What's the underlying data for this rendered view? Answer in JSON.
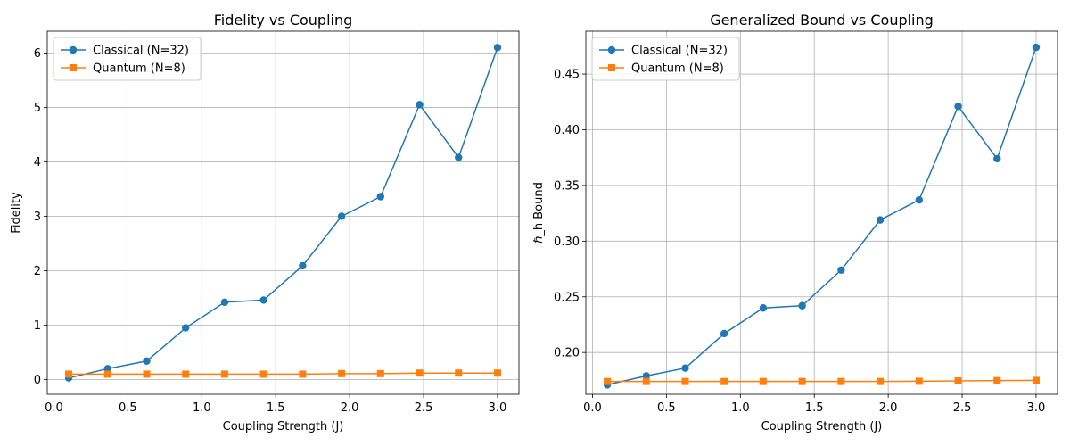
{
  "chart_data": [
    {
      "type": "line",
      "title": "Fidelity vs Coupling",
      "xlabel": "Coupling Strength (J)",
      "ylabel": "Fidelity",
      "x": [
        0.1,
        0.3636,
        0.6273,
        0.8909,
        1.1545,
        1.4182,
        1.6818,
        1.9455,
        2.2091,
        2.4727,
        2.7364,
        3.0
      ],
      "xlim": [
        -0.045,
        3.145
      ],
      "ylim": [
        -0.27,
        6.4
      ],
      "xticks": [
        0.0,
        0.5,
        1.0,
        1.5,
        2.0,
        2.5,
        3.0
      ],
      "xtick_labels": [
        "0.0",
        "0.5",
        "1.0",
        "1.5",
        "2.0",
        "2.5",
        "3.0"
      ],
      "yticks": [
        0,
        1,
        2,
        3,
        4,
        5,
        6
      ],
      "ytick_labels": [
        "0",
        "1",
        "2",
        "3",
        "4",
        "5",
        "6"
      ],
      "grid": true,
      "legend_position": "top-left",
      "series": [
        {
          "name": "Classical (N=32)",
          "color": "#1f77b4",
          "marker": "circle",
          "values": [
            0.03,
            0.2,
            0.34,
            0.95,
            1.42,
            1.46,
            2.09,
            3.0,
            3.36,
            5.05,
            4.08,
            6.1
          ]
        },
        {
          "name": "Quantum (N=8)",
          "color": "#ff7f0e",
          "marker": "square",
          "values": [
            0.1,
            0.1,
            0.1,
            0.1,
            0.1,
            0.1,
            0.1,
            0.11,
            0.11,
            0.12,
            0.12,
            0.12
          ]
        }
      ]
    },
    {
      "type": "line",
      "title": "Generalized Bound vs Coupling",
      "xlabel": "Coupling Strength (J)",
      "ylabel": "ℏ_h Bound",
      "x": [
        0.1,
        0.3636,
        0.6273,
        0.8909,
        1.1545,
        1.4182,
        1.6818,
        1.9455,
        2.2091,
        2.4727,
        2.7364,
        3.0
      ],
      "xlim": [
        -0.045,
        3.145
      ],
      "ylim": [
        0.1625,
        0.4885
      ],
      "xticks": [
        0.0,
        0.5,
        1.0,
        1.5,
        2.0,
        2.5,
        3.0
      ],
      "xtick_labels": [
        "0.0",
        "0.5",
        "1.0",
        "1.5",
        "2.0",
        "2.5",
        "3.0"
      ],
      "yticks": [
        0.2,
        0.25,
        0.3,
        0.35,
        0.4,
        0.45
      ],
      "ytick_labels": [
        "0.20",
        "0.25",
        "0.30",
        "0.35",
        "0.40",
        "0.45"
      ],
      "grid": true,
      "legend_position": "top-left",
      "series": [
        {
          "name": "Classical (N=32)",
          "color": "#1f77b4",
          "marker": "circle",
          "values": [
            0.171,
            0.179,
            0.186,
            0.217,
            0.24,
            0.242,
            0.274,
            0.319,
            0.337,
            0.421,
            0.374,
            0.474
          ]
        },
        {
          "name": "Quantum (N=8)",
          "color": "#ff7f0e",
          "marker": "square",
          "values": [
            0.174,
            0.174,
            0.174,
            0.174,
            0.174,
            0.174,
            0.174,
            0.174,
            0.1742,
            0.1745,
            0.1748,
            0.175
          ]
        }
      ]
    }
  ]
}
